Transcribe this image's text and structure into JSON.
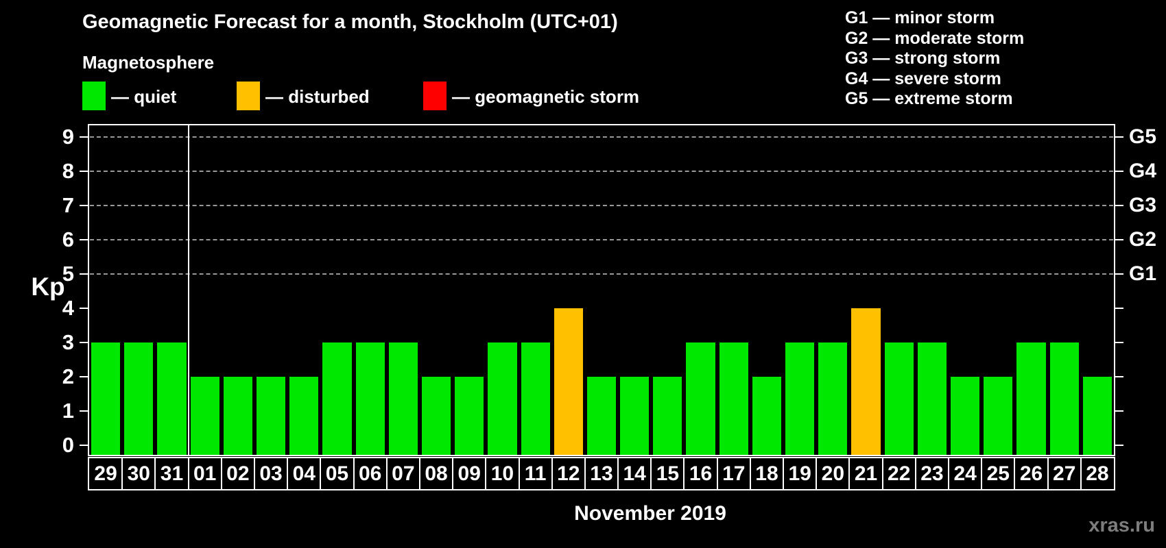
{
  "title": "Geomagnetic Forecast for a month, Stockholm (UTC+01)",
  "subtitle": "Magnetosphere",
  "legend": [
    {
      "label": "— quiet",
      "color": "#00e800"
    },
    {
      "label": "— disturbed",
      "color": "#ffc000"
    },
    {
      "label": "— geomagnetic storm",
      "color": "#ff0000"
    }
  ],
  "storm_scale_legend": [
    "G1 — minor storm",
    "G2 — moderate storm",
    "G3 — strong storm",
    "G4 — severe storm",
    "G5 — extreme storm"
  ],
  "watermark": "xras.ru",
  "chart_data": {
    "type": "bar",
    "title": "Geomagnetic Forecast for a month, Stockholm (UTC+01)",
    "xlabel": "November 2019",
    "ylabel": "Kp",
    "ylim": [
      0,
      9
    ],
    "grid": "dashed horizontal at Kp 5-9 only",
    "legend_position": "top",
    "categories": [
      "29",
      "30",
      "31",
      "01",
      "02",
      "03",
      "04",
      "05",
      "06",
      "07",
      "08",
      "09",
      "10",
      "11",
      "12",
      "13",
      "14",
      "15",
      "16",
      "17",
      "18",
      "19",
      "20",
      "21",
      "22",
      "23",
      "24",
      "25",
      "26",
      "27",
      "28"
    ],
    "values": [
      3,
      3,
      3,
      2,
      2,
      2,
      2,
      3,
      3,
      3,
      2,
      2,
      3,
      3,
      4,
      2,
      2,
      2,
      3,
      3,
      2,
      3,
      3,
      4,
      3,
      3,
      2,
      2,
      3,
      3,
      2
    ],
    "statuses": [
      "quiet",
      "quiet",
      "quiet",
      "quiet",
      "quiet",
      "quiet",
      "quiet",
      "quiet",
      "quiet",
      "quiet",
      "quiet",
      "quiet",
      "quiet",
      "quiet",
      "disturbed",
      "quiet",
      "quiet",
      "quiet",
      "quiet",
      "quiet",
      "quiet",
      "quiet",
      "quiet",
      "disturbed",
      "quiet",
      "quiet",
      "quiet",
      "quiet",
      "quiet",
      "quiet",
      "quiet"
    ],
    "colors": {
      "quiet": "#00e800",
      "disturbed": "#ffc000",
      "storm": "#ff0000"
    },
    "y_tick_labels": [
      "0",
      "1",
      "2",
      "3",
      "4",
      "5",
      "6",
      "7",
      "8",
      "9"
    ],
    "gridline_kp": [
      5,
      6,
      7,
      8,
      9
    ],
    "right_axis_labels": [
      {
        "label": "G5",
        "kp": 9
      },
      {
        "label": "G4",
        "kp": 8
      },
      {
        "label": "G3",
        "kp": 7
      },
      {
        "label": "G2",
        "kp": 6
      },
      {
        "label": "G1",
        "kp": 5
      }
    ],
    "month_boundary_index": 3
  }
}
